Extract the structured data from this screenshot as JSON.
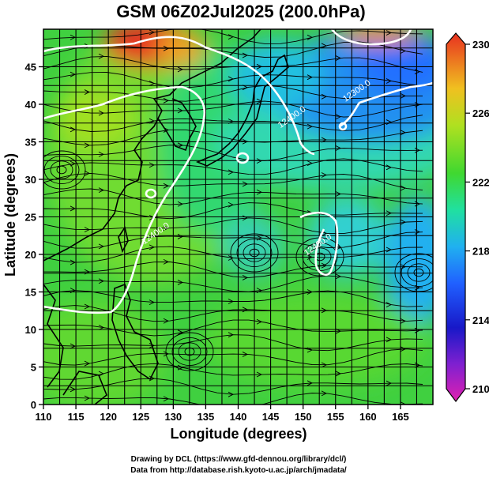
{
  "title": "GSM 06Z02Jul2025 (200.0hPa)",
  "x_axis": {
    "label": "Longitude (degrees)",
    "range": [
      110,
      170
    ],
    "ticks": [
      "110",
      "115",
      "120",
      "125",
      "130",
      "135",
      "140",
      "145",
      "150",
      "155",
      "160",
      "165"
    ]
  },
  "y_axis": {
    "label": "Latitude  (degrees)",
    "range": [
      0,
      50
    ],
    "ticks": [
      "0",
      "5",
      "10",
      "15",
      "20",
      "25",
      "30",
      "35",
      "40",
      "45"
    ]
  },
  "colorbar": {
    "range": [
      210,
      230
    ],
    "ticks": [
      "210",
      "214",
      "218",
      "222",
      "226",
      "230"
    ],
    "colors": [
      "#d01ea8",
      "#1010c0",
      "#2080ff",
      "#20d0c0",
      "#40d020",
      "#a0e020",
      "#f0c020",
      "#e03020"
    ]
  },
  "contour_labels": [
    {
      "text": "12300.0",
      "lon": 158.5,
      "lat": 41.5
    },
    {
      "text": "12400.0",
      "lon": 148.5,
      "lat": 38.0
    },
    {
      "text": "12400.0",
      "lon": 127.5,
      "lat": 22.5
    },
    {
      "text": "12400.0",
      "lon": 152.5,
      "lat": 21.0
    }
  ],
  "credits": {
    "line1": "Drawing by DCL (https://www.gfd-dennou.org/library/dcl/)",
    "line2": "Data from http://database.rish.kyoto-u.ac.jp/arch/jmadata/"
  }
}
